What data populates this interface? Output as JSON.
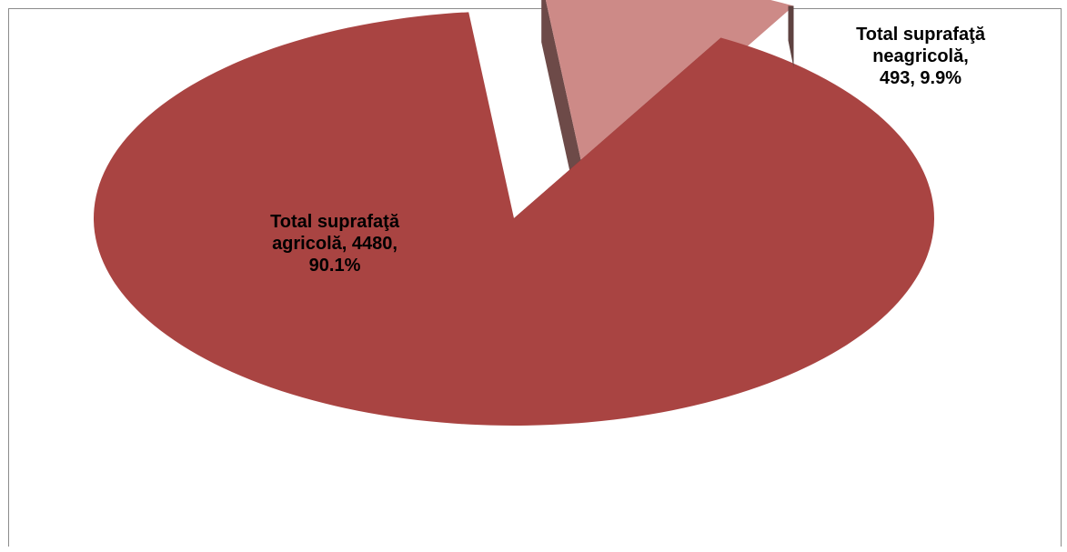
{
  "chart_data": {
    "type": "pie",
    "title": "",
    "labels": [
      "Total suprafaţă agricolă",
      "Total suprafaţă neagricolă"
    ],
    "values": [
      4480,
      493
    ],
    "percents": [
      90.1,
      9.9
    ],
    "colors": [
      "#a94442",
      "#cd8a87"
    ],
    "legend": false,
    "data_labels": [
      [
        "Total suprafaţă",
        "agricolă, 4480,",
        "90.1%"
      ],
      [
        "Total suprafaţă",
        "neagricolă,",
        "493, 9.9%"
      ]
    ]
  }
}
